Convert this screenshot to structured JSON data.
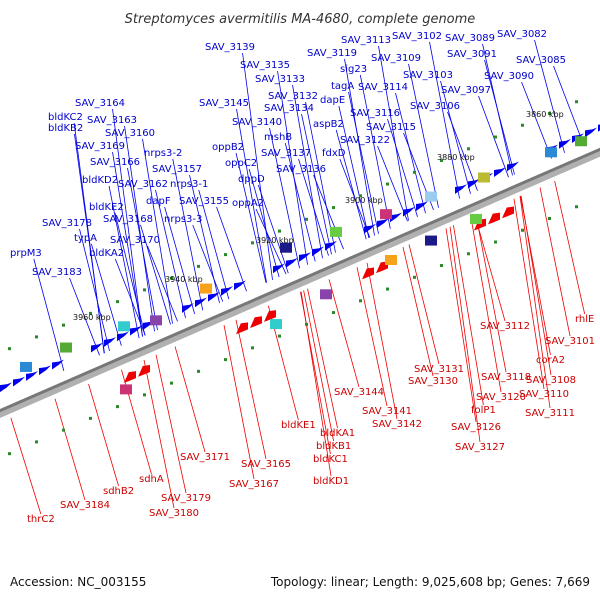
{
  "title": "Streptomyces avermitilis MA-4680, complete genome",
  "footer": {
    "accession": "Accession: NC_003155",
    "summary": "Topology: linear; Length: 9,025,608 bp; Genes: 7,669"
  },
  "ticks": [
    "3860 kbp",
    "3880 kbp",
    "3900 kbp",
    "3920 kbp",
    "3940 kbp",
    "3960 kbp"
  ],
  "top_labels": [
    "SAV_3082",
    "SAV_3085",
    "SAV_3089",
    "SAV_3090",
    "SAV_3091",
    "SAV_3097",
    "SAV_3102",
    "SAV_3103",
    "SAV_3106",
    "SAV_3109",
    "SAV_3113",
    "SAV_3114",
    "SAV_3115",
    "SAV_3116",
    "SAV_3119",
    "SAV_3122",
    "SAV_3132",
    "SAV_3133",
    "SAV_3134",
    "SAV_3135",
    "SAV_3136",
    "SAV_3137",
    "SAV_3139",
    "SAV_3140",
    "SAV_3145",
    "SAV_3155",
    "SAV_3157",
    "SAV_3160",
    "SAV_3162",
    "SAV_3163",
    "SAV_3164",
    "SAV_3166",
    "SAV_3168",
    "SAV_3169",
    "SAV_3170",
    "SAV_3178",
    "SAV_3183",
    "sig23",
    "tagA",
    "dapE",
    "aspB2",
    "fdxD",
    "mshB",
    "oppB2",
    "oppC2",
    "dppD",
    "oppA2",
    "nrps3-2",
    "nrps3-1",
    "nrps3-3",
    "dapF",
    "bldKC2",
    "bldKB2",
    "bldKD2",
    "bldKE2",
    "bldKA2",
    "typA",
    "prpM3"
  ],
  "bottom_labels": [
    "rhlE",
    "SAV_3101",
    "SAV_3112",
    "corA2",
    "SAV_3108",
    "SAV_3110",
    "SAV_3111",
    "SAV_3118",
    "SAV_3120",
    "folP1",
    "SAV_3126",
    "SAV_3127",
    "SAV_3130",
    "SAV_3131",
    "SAV_3141",
    "SAV_3142",
    "SAV_3144",
    "bldKA1",
    "bldKB1",
    "bldKC1",
    "bldKD1",
    "bldKE1",
    "SAV_3165",
    "SAV_3167",
    "SAV_3171",
    "SAV_3179",
    "SAV_3180",
    "sdhA",
    "sdhB2",
    "SAV_3184",
    "thrC2"
  ],
  "colors": {
    "forward": "#0000ee",
    "reverse": "#ee0000",
    "axis": "#888888"
  }
}
